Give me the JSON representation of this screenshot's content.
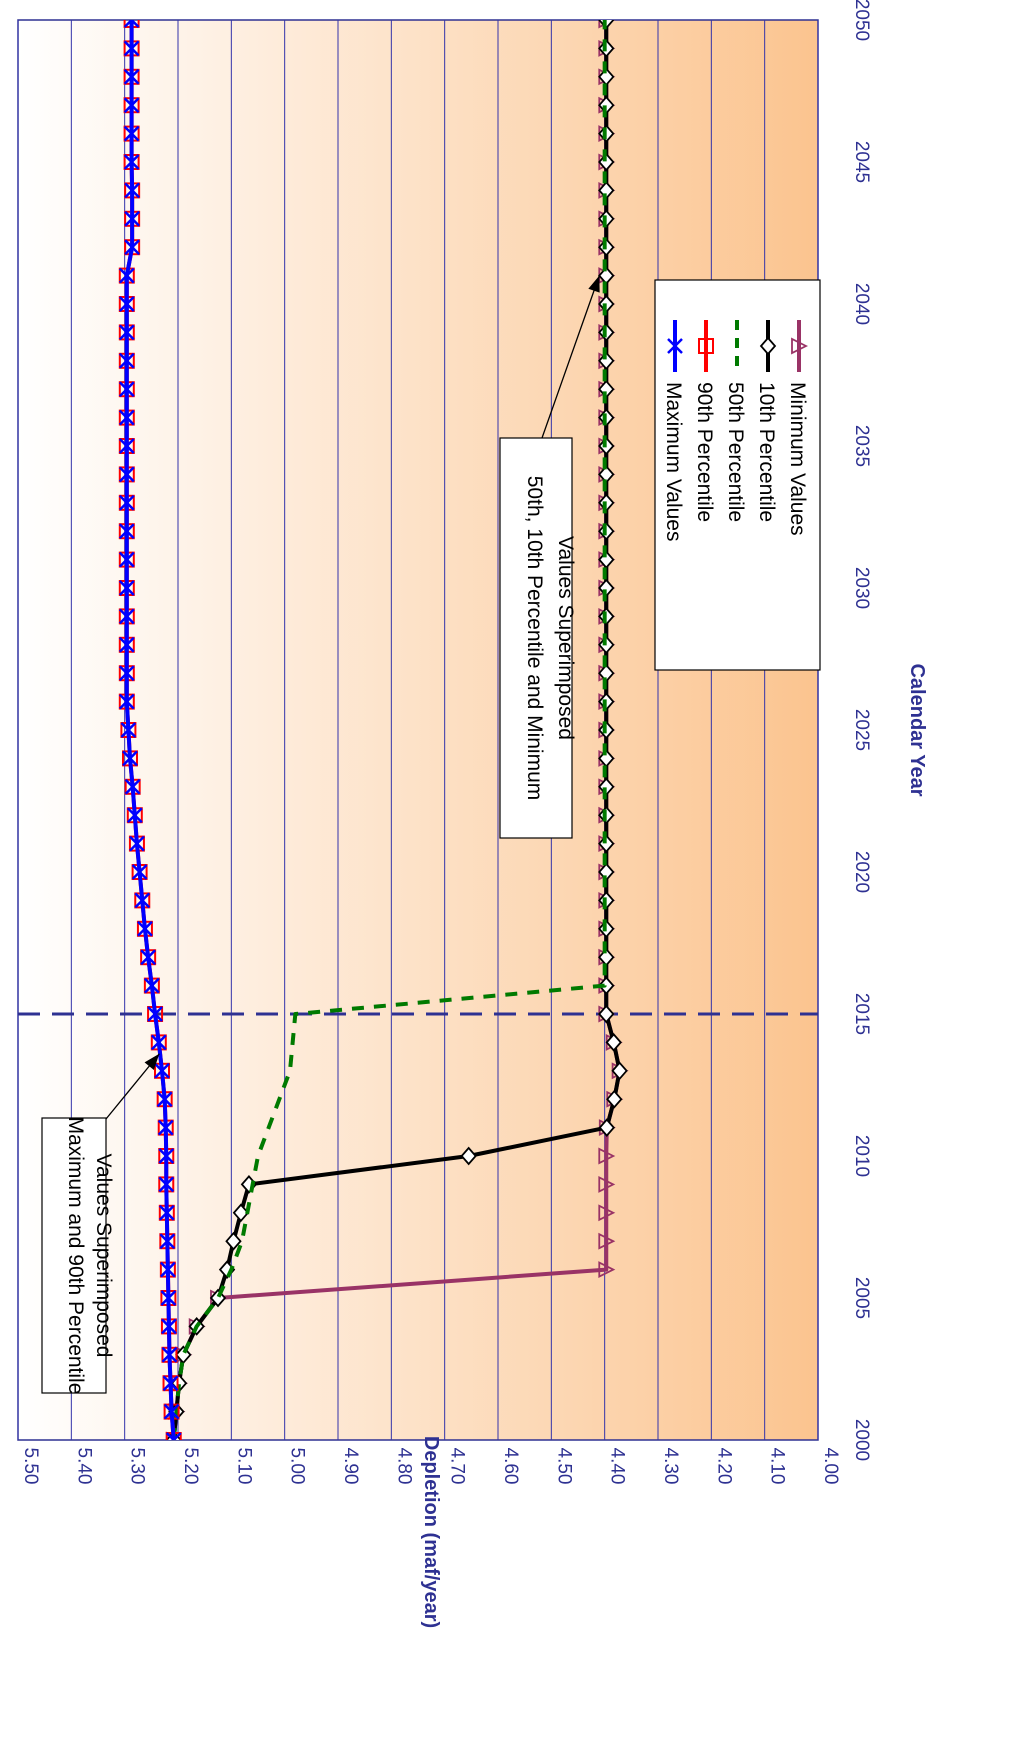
{
  "chart_data": {
    "type": "line",
    "orientation": "rotated-90-clockwise",
    "xlabel": "Calendar Year",
    "ylabel": "Depletion (maf/year)",
    "xlim": [
      2000,
      2050
    ],
    "ylim": [
      4.0,
      5.5
    ],
    "x_ticks": [
      "2000",
      "2005",
      "2010",
      "2015",
      "2020",
      "2025",
      "2030",
      "2035",
      "2040",
      "2045",
      "2050"
    ],
    "y_ticks": [
      "4.00",
      "4.10",
      "4.20",
      "4.30",
      "4.40",
      "4.50",
      "4.60",
      "4.70",
      "4.80",
      "4.90",
      "5.00",
      "5.10",
      "5.20",
      "5.30",
      "5.40",
      "5.50"
    ],
    "grid": true,
    "reference_line": {
      "x": 2015
    },
    "colors": {
      "series_max": "#0000ff",
      "series_p90": "#ff0000",
      "series_p50": "#007a00",
      "series_p10": "#000000",
      "series_min": "#993366",
      "axis_text": "#2e3192",
      "grid": "#3333aa",
      "reference_line": "#2e3192",
      "background_light": "#ffffff",
      "background_dark": "#fbc48f"
    },
    "x": [
      2000,
      2001,
      2002,
      2003,
      2004,
      2005,
      2006,
      2007,
      2008,
      2009,
      2010,
      2011,
      2012,
      2013,
      2014,
      2015,
      2016,
      2017,
      2018,
      2019,
      2020,
      2021,
      2022,
      2023,
      2024,
      2025,
      2026,
      2027,
      2028,
      2029,
      2030,
      2031,
      2032,
      2033,
      2034,
      2035,
      2036,
      2037,
      2038,
      2039,
      2040,
      2041,
      2042,
      2043,
      2044,
      2045,
      2046,
      2047,
      2048,
      2049,
      2050
    ],
    "series": [
      {
        "name": "Maximum Values",
        "marker": "x",
        "color": "#0000ff",
        "values": [
          5.208,
          5.212,
          5.214,
          5.216,
          5.217,
          5.218,
          5.219,
          5.22,
          5.221,
          5.222,
          5.222,
          5.223,
          5.225,
          5.23,
          5.236,
          5.243,
          5.249,
          5.256,
          5.262,
          5.267,
          5.272,
          5.277,
          5.281,
          5.285,
          5.29,
          5.293,
          5.296,
          5.296,
          5.296,
          5.296,
          5.296,
          5.296,
          5.296,
          5.296,
          5.296,
          5.296,
          5.296,
          5.296,
          5.296,
          5.296,
          5.296,
          5.296,
          5.286,
          5.286,
          5.286,
          5.287,
          5.287,
          5.287,
          5.287,
          5.287,
          5.287
        ]
      },
      {
        "name": "90th Percentile",
        "marker": "square",
        "color": "#ff0000",
        "values": [
          5.208,
          5.212,
          5.214,
          5.216,
          5.217,
          5.218,
          5.219,
          5.22,
          5.221,
          5.222,
          5.222,
          5.223,
          5.225,
          5.23,
          5.236,
          5.243,
          5.249,
          5.256,
          5.262,
          5.267,
          5.272,
          5.277,
          5.281,
          5.285,
          5.29,
          5.293,
          5.296,
          5.296,
          5.296,
          5.296,
          5.296,
          5.296,
          5.296,
          5.296,
          5.296,
          5.296,
          5.296,
          5.296,
          5.296,
          5.296,
          5.296,
          5.296,
          5.286,
          5.286,
          5.286,
          5.287,
          5.287,
          5.287,
          5.287,
          5.287,
          5.287
        ]
      },
      {
        "name": "50th Percentile",
        "marker": "none",
        "dashed": true,
        "color": "#007a00",
        "values": [
          5.208,
          5.203,
          5.198,
          5.19,
          5.165,
          5.125,
          5.1,
          5.08,
          5.07,
          5.06,
          5.05,
          5.03,
          5.01,
          4.99,
          4.985,
          4.98,
          4.4,
          4.4,
          4.4,
          4.4,
          4.4,
          4.4,
          4.4,
          4.4,
          4.4,
          4.4,
          4.4,
          4.4,
          4.4,
          4.4,
          4.4,
          4.4,
          4.4,
          4.4,
          4.4,
          4.4,
          4.4,
          4.4,
          4.4,
          4.4,
          4.4,
          4.4,
          4.4,
          4.4,
          4.4,
          4.4,
          4.4,
          4.4,
          4.4,
          4.4,
          4.4
        ]
      },
      {
        "name": "10th Percentile",
        "marker": "diamond",
        "color": "#000000",
        "values": [
          5.208,
          5.203,
          5.198,
          5.19,
          5.165,
          5.125,
          5.108,
          5.096,
          5.082,
          5.067,
          4.655,
          4.396,
          4.382,
          4.372,
          4.383,
          4.397,
          4.397,
          4.397,
          4.397,
          4.397,
          4.397,
          4.397,
          4.397,
          4.397,
          4.397,
          4.397,
          4.397,
          4.397,
          4.397,
          4.397,
          4.397,
          4.397,
          4.397,
          4.397,
          4.397,
          4.397,
          4.397,
          4.397,
          4.397,
          4.397,
          4.397,
          4.397,
          4.397,
          4.397,
          4.397,
          4.397,
          4.397,
          4.397,
          4.397,
          4.397,
          4.397
        ]
      },
      {
        "name": "Minimum Values",
        "marker": "triangle",
        "color": "#993366",
        "values": [
          5.208,
          5.203,
          5.198,
          5.19,
          5.165,
          5.125,
          4.397,
          4.397,
          4.397,
          4.397,
          4.397,
          4.396,
          4.382,
          4.372,
          4.383,
          4.397,
          4.397,
          4.397,
          4.397,
          4.397,
          4.397,
          4.397,
          4.397,
          4.397,
          4.397,
          4.397,
          4.397,
          4.397,
          4.397,
          4.397,
          4.397,
          4.397,
          4.397,
          4.397,
          4.397,
          4.397,
          4.397,
          4.397,
          4.397,
          4.397,
          4.397,
          4.397,
          4.397,
          4.397,
          4.397,
          4.397,
          4.397,
          4.397,
          4.397,
          4.397,
          4.397
        ]
      }
    ],
    "annotations": [
      {
        "lines": [
          "Maximum and 90th Percentile",
          "Values Superimposed"
        ],
        "points_to": {
          "x": 2013.6,
          "y": 5.235
        }
      },
      {
        "lines": [
          "50th, 10th Percentile and Minimum",
          "Values Superimposed"
        ],
        "points_to": {
          "x": 2041,
          "y": 4.41
        }
      }
    ]
  }
}
